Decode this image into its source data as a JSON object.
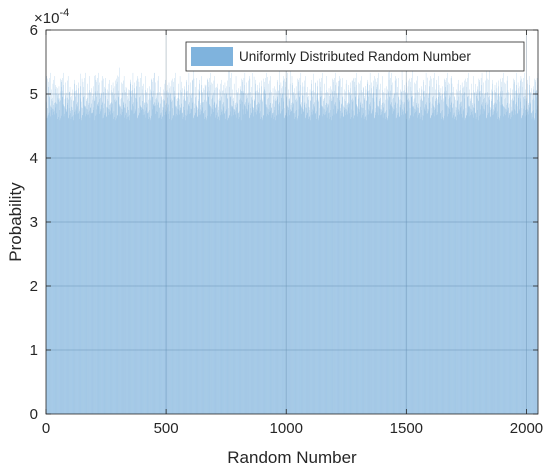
{
  "chart_data": {
    "type": "bar",
    "xlabel": "Random Number",
    "ylabel": "Probability",
    "y_exponent_label": "×10",
    "y_exponent_power": "-4",
    "xlim": [
      0,
      2048
    ],
    "ylim": [
      0,
      6
    ],
    "y_scale_factor": 0.0001,
    "xticks": [
      0,
      500,
      1000,
      1500,
      2000
    ],
    "xtick_labels": [
      "0",
      "500",
      "1000",
      "1500",
      "2000"
    ],
    "yticks": [
      0,
      1,
      2,
      3,
      4,
      5,
      6
    ],
    "ytick_labels": [
      "0",
      "1",
      "2",
      "3",
      "4",
      "5",
      "6"
    ],
    "grid": true,
    "legend": {
      "position": "top-right",
      "entries": [
        "Uniformly Distributed Random Number"
      ]
    },
    "series": [
      {
        "name": "Uniformly Distributed Random Number",
        "color": "#7fb3dd",
        "bin_count": 2048,
        "bin_start": 1,
        "bin_width": 1,
        "base_probability": 4.883,
        "values": [
          4.86,
          5.05,
          4.71,
          4.98,
          4.67,
          5.24,
          4.79,
          5.33,
          4.64,
          5.02,
          4.76,
          5.11,
          4.7,
          4.92,
          4.59,
          5.28,
          4.84,
          4.97,
          4.73,
          5.16,
          4.66,
          5.03,
          4.81,
          4.75,
          5.21,
          4.68,
          4.95,
          5.09,
          4.77,
          4.9,
          4.63,
          5.14,
          4.8,
          5.0,
          4.72,
          5.19,
          4.85,
          4.69,
          5.07,
          4.88,
          4.74,
          5.25,
          4.61,
          4.94,
          5.04,
          4.78,
          4.87,
          4.65,
          5.12,
          4.83,
          4.96,
          4.7,
          5.18,
          4.89,
          4.62,
          5.06,
          4.82,
          4.91,
          4.76,
          5.22,
          4.67,
          5.01,
          4.79,
          4.93
        ]
      }
    ]
  }
}
